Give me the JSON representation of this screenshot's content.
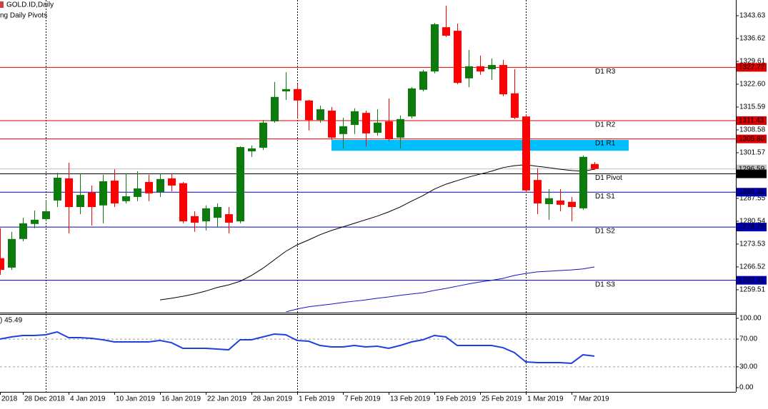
{
  "chart_data": {
    "type": "candlestick",
    "title": "GOLD.ID,Daily",
    "subtitle": "ng Daily Pivots",
    "x_labels": [
      "2018",
      "28 Dec 2018",
      "4 Jan 2019",
      "10 Jan 2019",
      "16 Jan 2019",
      "22 Jan 2019",
      "28 Jan 2019",
      "1 Feb 2019",
      "7 Feb 2019",
      "13 Feb 2019",
      "19 Feb 2019",
      "25 Feb 2019",
      "1 Mar 2019",
      "7 Mar 2019"
    ],
    "open": [
      1269.2,
      1266.3,
      1275.1,
      1279.7,
      1281.2,
      1286.9,
      1293.7,
      1284.9,
      1289.3,
      1285.4,
      1293.0,
      1286.7,
      1288.0,
      1292.6,
      1289.5,
      1293.7,
      1292.2,
      1282.1,
      1280.5,
      1281.6,
      1282.7,
      1280.5,
      1302.0,
      1303.1,
      1311.2,
      1320.4,
      1321.1,
      1317.6,
      1311.6,
      1314.5,
      1307.3,
      1310.1,
      1313.8,
      1307.7,
      1311.2,
      1306.2,
      1312.7,
      1320.9,
      1326.5,
      1340.1,
      1339.0,
      1324.4,
      1328.1,
      1327.2,
      1328.5,
      1319.8,
      1312.7,
      1293.2,
      1285.8,
      1286.9,
      1286.5,
      1284.5,
      1298.1
    ],
    "high": [
      1278.4,
      1277.3,
      1281.6,
      1283.8,
      1287.1,
      1295.4,
      1298.5,
      1295.2,
      1291.5,
      1294.8,
      1296.5,
      1295.2,
      1295.9,
      1294.8,
      1295.2,
      1295.2,
      1292.6,
      1283.6,
      1285.4,
      1286.0,
      1284.9,
      1303.5,
      1303.8,
      1311.6,
      1323.3,
      1326.3,
      1322.6,
      1317.8,
      1316.0,
      1315.6,
      1312.3,
      1315.2,
      1314.5,
      1314.9,
      1318.2,
      1313.0,
      1321.7,
      1327.0,
      1341.4,
      1346.7,
      1341.2,
      1333.1,
      1331.4,
      1330.5,
      1330.1,
      1327.2,
      1313.4,
      1296.8,
      1290.4,
      1290.4,
      1288.0,
      1300.7,
      1298.7
    ],
    "low": [
      1264.1,
      1265.6,
      1274.4,
      1278.4,
      1280.5,
      1284.9,
      1276.8,
      1282.7,
      1279.2,
      1279.9,
      1284.9,
      1286.0,
      1286.7,
      1286.7,
      1288.0,
      1289.7,
      1279.9,
      1277.3,
      1277.7,
      1278.8,
      1276.8,
      1279.9,
      1300.3,
      1302.4,
      1310.8,
      1317.8,
      1312.3,
      1308.4,
      1310.8,
      1305.5,
      1302.9,
      1307.3,
      1303.5,
      1306.8,
      1305.1,
      1302.9,
      1312.1,
      1320.4,
      1325.9,
      1337.1,
      1322.6,
      1321.7,
      1325.5,
      1323.9,
      1318.9,
      1311.9,
      1289.3,
      1282.7,
      1281.0,
      1283.6,
      1280.5,
      1284.1,
      1296.3
    ],
    "close": [
      1265.6,
      1275.1,
      1279.9,
      1281.0,
      1283.6,
      1293.9,
      1284.9,
      1288.6,
      1284.9,
      1292.8,
      1286.0,
      1288.2,
      1290.6,
      1289.1,
      1293.5,
      1291.5,
      1280.5,
      1280.1,
      1284.5,
      1284.9,
      1280.1,
      1303.3,
      1302.9,
      1310.8,
      1318.7,
      1321.1,
      1317.6,
      1311.6,
      1314.9,
      1306.2,
      1309.7,
      1314.3,
      1307.5,
      1310.8,
      1305.7,
      1311.9,
      1321.3,
      1326.5,
      1341.0,
      1337.5,
      1323.0,
      1328.1,
      1326.5,
      1328.5,
      1319.5,
      1312.3,
      1290.0,
      1286.0,
      1287.6,
      1285.6,
      1284.9,
      1300.3,
      1296.6
    ],
    "colors": {
      "up": "#0c7a0c",
      "down": "#ff0000"
    },
    "ylim": [
      1252.7,
      1348.45
    ],
    "yticks": [
      1343.63,
      1336.62,
      1329.61,
      {
        "value": 1322.6,
        "label": "1322.60"
      },
      1315.59,
      1308.58,
      1301.57,
      1287.55,
      1280.54,
      1273.53,
      1266.52,
      1259.51
    ],
    "series": [
      {
        "color": "#000000",
        "values": [
          null,
          null,
          null,
          null,
          null,
          null,
          null,
          null,
          null,
          null,
          null,
          null,
          null,
          null,
          1256.4,
          1256.9,
          1257.5,
          1258.2,
          1259.1,
          1260.2,
          1261.0,
          1262.1,
          1263.9,
          1266.1,
          1268.7,
          1271.3,
          1273.3,
          1274.8,
          1276.4,
          1277.7,
          1278.8,
          1279.9,
          1281.0,
          1282.1,
          1283.4,
          1284.9,
          1286.7,
          1288.4,
          1290.4,
          1291.9,
          1293.0,
          1294.1,
          1295.0,
          1295.9,
          1297.0,
          1297.6,
          1297.9,
          1297.4,
          1297.0,
          1296.5,
          1296.1,
          1295.9,
          1296.5
        ]
      },
      {
        "color": "#1414c8",
        "values": [
          null,
          null,
          null,
          null,
          null,
          null,
          null,
          null,
          null,
          null,
          null,
          null,
          null,
          null,
          null,
          null,
          null,
          null,
          null,
          null,
          null,
          null,
          null,
          null,
          null,
          1252.7,
          1253.6,
          1254.3,
          1254.7,
          1255.1,
          1255.6,
          1256.0,
          1256.4,
          1256.9,
          1257.3,
          1257.8,
          1258.2,
          1258.6,
          1259.3,
          1259.9,
          1260.6,
          1261.3,
          1261.9,
          1262.4,
          1263.0,
          1263.9,
          1264.5,
          1265.0,
          1265.2,
          1265.4,
          1265.6,
          1265.9,
          1266.5
        ]
      }
    ],
    "bid": 1296.59,
    "pivots": [
      {
        "name": "D1 R3",
        "value": 1327.77,
        "color": "#e00000"
      },
      {
        "name": "D1 R2",
        "value": 1311.43,
        "color": "#e00000"
      },
      {
        "name": "D1 R1",
        "value": 1305.8,
        "value_label": "1305.80",
        "color": "#e00000"
      },
      {
        "name": "D1 Pivot",
        "value": 1295.09,
        "color": "#000000"
      },
      {
        "name": "D1 S1",
        "value": 1289.46,
        "color": "#0000b4"
      },
      {
        "name": "D1 S2",
        "value": 1278.75,
        "color": "#0000b4"
      },
      {
        "name": "D1 S3",
        "value": 1262.41,
        "color": "#0000b4"
      }
    ],
    "zone": {
      "from_index": 29,
      "to_index": 55,
      "low": 1302.2,
      "high": 1305.5,
      "color": "#00bfff"
    },
    "indicator": {
      "label": ") 45.49",
      "ylim": [
        -6.2,
        106.2
      ],
      "yticks": [
        {
          "value": 100,
          "label": "100.00"
        },
        {
          "value": 70,
          "label": "70.00"
        },
        {
          "value": 30,
          "label": "30.00"
        },
        {
          "value": 0,
          "label": "0.00"
        }
      ],
      "levels": [
        70,
        30
      ],
      "color": "#1f3fe0",
      "values": [
        70.1,
        73.2,
        75.3,
        75.3,
        76.3,
        80.4,
        72.2,
        72.2,
        71.1,
        69.1,
        66.0,
        66.0,
        66.0,
        66.0,
        68.0,
        64.9,
        56.7,
        56.7,
        56.7,
        55.7,
        54.6,
        69.1,
        69.1,
        73.2,
        77.3,
        76.3,
        68.0,
        67.0,
        60.8,
        58.8,
        58.8,
        60.8,
        58.8,
        59.8,
        56.7,
        60.8,
        66.0,
        69.1,
        75.3,
        73.2,
        60.8,
        60.8,
        60.8,
        60.8,
        57.7,
        50.5,
        37.1,
        36.1,
        36.1,
        36.1,
        35.1,
        47.4,
        45.49
      ]
    }
  }
}
